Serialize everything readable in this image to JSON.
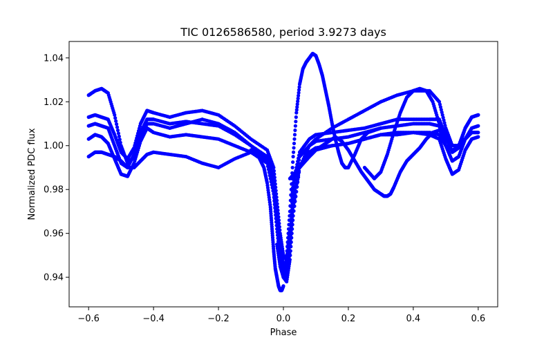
{
  "chart_data": {
    "type": "scatter",
    "title": "TIC 0126586580, period 3.9273 days",
    "xlabel": "Phase",
    "ylabel": "Normalized PDC flux",
    "xlim": [
      -0.66,
      0.66
    ],
    "ylim": [
      0.9265,
      1.0475
    ],
    "xticks": [
      -0.6,
      -0.4,
      -0.2,
      0.0,
      0.2,
      0.4,
      0.6
    ],
    "xtick_labels": [
      "−0.6",
      "−0.4",
      "−0.2",
      "0.0",
      "0.2",
      "0.4",
      "0.6"
    ],
    "yticks": [
      0.94,
      0.96,
      0.98,
      1.0,
      1.02,
      1.04
    ],
    "ytick_labels": [
      "0.94",
      "0.96",
      "0.98",
      "1.00",
      "1.02",
      "1.04"
    ],
    "grid": false,
    "legend": "none",
    "marker_color": "#0000ff",
    "series": [
      {
        "x": [
          -0.6,
          -0.58,
          -0.56,
          -0.54,
          -0.52,
          -0.5,
          -0.48,
          -0.46,
          -0.44,
          -0.42,
          -0.4,
          -0.35,
          -0.3,
          -0.25,
          -0.2,
          -0.15,
          -0.1,
          -0.05,
          -0.03,
          -0.02,
          -0.01,
          0.0,
          0.01,
          0.02,
          0.03,
          0.05,
          0.08,
          0.1,
          0.15,
          0.2,
          0.25,
          0.3,
          0.35,
          0.4,
          0.45,
          0.48,
          0.5,
          0.52,
          0.54,
          0.56,
          0.58,
          0.6
        ],
        "y": [
          1.009,
          1.01,
          1.009,
          1.008,
          1.0,
          0.992,
          0.99,
          0.996,
          1.006,
          1.012,
          1.012,
          1.01,
          1.011,
          1.01,
          1.009,
          1.005,
          1.0,
          0.995,
          0.985,
          0.97,
          0.955,
          0.945,
          0.945,
          0.96,
          0.98,
          0.995,
          1.0,
          1.002,
          1.003,
          1.004,
          1.006,
          1.008,
          1.009,
          1.01,
          1.01,
          1.009,
          1.0,
          0.993,
          0.995,
          1.003,
          1.008,
          1.009
        ]
      },
      {
        "x": [
          -0.6,
          -0.58,
          -0.56,
          -0.54,
          -0.52,
          -0.5,
          -0.48,
          -0.46,
          -0.44,
          -0.42,
          -0.4,
          -0.35,
          -0.3,
          -0.25,
          -0.2,
          -0.15,
          -0.1,
          -0.05,
          -0.03,
          -0.02,
          -0.01,
          0.0,
          0.01,
          0.02,
          0.03,
          0.05,
          0.08,
          0.1,
          0.15,
          0.2,
          0.25,
          0.3,
          0.35,
          0.4,
          0.45,
          0.48,
          0.5,
          0.52,
          0.54,
          0.56,
          0.58,
          0.6
        ],
        "y": [
          1.003,
          1.005,
          1.004,
          1.001,
          0.994,
          0.987,
          0.986,
          0.992,
          1.002,
          1.008,
          1.006,
          1.004,
          1.005,
          1.004,
          1.003,
          1.0,
          0.997,
          0.992,
          0.978,
          0.962,
          0.948,
          0.94,
          0.942,
          0.955,
          0.975,
          0.99,
          0.996,
          0.998,
          1.0,
          1.001,
          1.003,
          1.005,
          1.006,
          1.006,
          1.005,
          1.003,
          0.994,
          0.987,
          0.989,
          0.998,
          1.003,
          1.004
        ]
      },
      {
        "x": [
          -0.6,
          -0.58,
          -0.56,
          -0.54,
          -0.52,
          -0.5,
          -0.48,
          -0.46,
          -0.44,
          -0.42,
          -0.4,
          -0.35,
          -0.3,
          -0.25,
          -0.2,
          -0.15,
          -0.1,
          -0.05,
          -0.03,
          -0.02,
          -0.01,
          0.0,
          0.01,
          0.02,
          0.03,
          0.05,
          0.08,
          0.1,
          0.15,
          0.2,
          0.25,
          0.3,
          0.35,
          0.4,
          0.45,
          0.48,
          0.5,
          0.52,
          0.54,
          0.56,
          0.58,
          0.6
        ],
        "y": [
          1.013,
          1.014,
          1.013,
          1.012,
          1.005,
          0.997,
          0.994,
          0.999,
          1.01,
          1.016,
          1.015,
          1.013,
          1.015,
          1.016,
          1.014,
          1.009,
          1.003,
          0.998,
          0.99,
          0.975,
          0.96,
          0.95,
          0.948,
          0.962,
          0.983,
          0.997,
          1.003,
          1.005,
          1.006,
          1.007,
          1.008,
          1.01,
          1.012,
          1.012,
          1.012,
          1.012,
          1.004,
          0.997,
          0.999,
          1.008,
          1.013,
          1.014
        ]
      },
      {
        "x": [
          -0.6,
          -0.58,
          -0.56,
          -0.54,
          -0.52,
          -0.5,
          -0.48,
          -0.46,
          -0.44,
          -0.42,
          -0.4,
          -0.35,
          -0.3,
          -0.25,
          -0.2,
          -0.15,
          -0.1,
          -0.05,
          -0.03,
          -0.02,
          -0.01,
          0.0,
          0.01,
          0.02,
          0.03,
          0.05,
          0.08,
          0.1,
          0.15,
          0.2,
          0.25,
          0.3,
          0.35,
          0.4,
          0.45,
          0.48,
          0.5,
          0.52,
          0.54,
          0.56,
          0.58,
          0.6
        ],
        "y": [
          1.023,
          1.025,
          1.026,
          1.024,
          1.014,
          1.0,
          0.992,
          0.995,
          1.004,
          1.01,
          1.01,
          1.008,
          1.01,
          1.012,
          1.01,
          1.006,
          1.0,
          0.993,
          0.98,
          0.965,
          0.95,
          0.94,
          0.938,
          0.948,
          0.968,
          0.99,
          1.0,
          1.003,
          1.008,
          1.012,
          1.016,
          1.02,
          1.023,
          1.025,
          1.025,
          1.02,
          1.008,
          1.0,
          1.0,
          1.008,
          1.013,
          1.014
        ]
      },
      {
        "x": [
          -0.6,
          -0.58,
          -0.56,
          -0.54,
          -0.52,
          -0.5,
          -0.48,
          -0.46,
          -0.44,
          -0.42,
          -0.4,
          -0.35,
          -0.3,
          -0.25,
          -0.2,
          -0.15,
          -0.1,
          -0.05,
          -0.03,
          -0.02,
          -0.01,
          0.0,
          0.01,
          0.02,
          0.03,
          0.05,
          0.08,
          0.1,
          0.15,
          0.2,
          0.25,
          0.3,
          0.35,
          0.4,
          0.45,
          0.48,
          0.5,
          0.52,
          0.54,
          0.56,
          0.58,
          0.6
        ],
        "y": [
          0.995,
          0.997,
          0.997,
          0.996,
          0.995,
          0.993,
          0.99,
          0.99,
          0.993,
          0.996,
          0.997,
          0.996,
          0.995,
          0.992,
          0.99,
          0.994,
          0.997,
          0.995,
          0.985,
          0.968,
          0.952,
          0.942,
          0.942,
          0.952,
          0.972,
          0.99,
          0.997,
          0.999,
          1.0,
          1.001,
          1.003,
          1.005,
          1.005,
          1.006,
          1.006,
          1.005,
          1.0,
          0.998,
          0.999,
          1.003,
          1.006,
          1.006
        ]
      },
      {
        "x": [
          -0.02,
          -0.01,
          0.0,
          0.01,
          0.02,
          0.03,
          0.04,
          0.05,
          0.06,
          0.07,
          0.08,
          0.09,
          0.1,
          0.11,
          0.12,
          0.13,
          0.14,
          0.15,
          0.16,
          0.17,
          0.18,
          0.19,
          0.2,
          0.22,
          0.24,
          0.26,
          0.28,
          0.3
        ],
        "y": [
          0.955,
          0.945,
          0.94,
          0.95,
          0.97,
          0.995,
          1.015,
          1.028,
          1.035,
          1.038,
          1.04,
          1.042,
          1.041,
          1.037,
          1.032,
          1.025,
          1.018,
          1.01,
          1.003,
          0.997,
          0.992,
          0.99,
          0.99,
          0.996,
          1.003,
          1.006,
          1.007,
          1.008
        ]
      },
      {
        "x": [
          0.02,
          0.05,
          0.08,
          0.1,
          0.12,
          0.14,
          0.16,
          0.18,
          0.2,
          0.22,
          0.24,
          0.26,
          0.28,
          0.3,
          0.31,
          0.32,
          0.33,
          0.34,
          0.36,
          0.38,
          0.4,
          0.42,
          0.44,
          0.46,
          0.48,
          0.5
        ],
        "y": [
          0.985,
          0.99,
          0.995,
          0.998,
          1.0,
          1.002,
          1.004,
          1.002,
          0.998,
          0.993,
          0.988,
          0.984,
          0.98,
          0.978,
          0.977,
          0.977,
          0.978,
          0.981,
          0.988,
          0.993,
          0.996,
          0.999,
          1.003,
          1.006,
          1.007,
          1.004
        ]
      },
      {
        "x": [
          0.25,
          0.28,
          0.3,
          0.32,
          0.34,
          0.36,
          0.38,
          0.4,
          0.42,
          0.44,
          0.46,
          0.48
        ],
        "y": [
          0.99,
          0.985,
          0.988,
          0.996,
          1.006,
          1.015,
          1.022,
          1.025,
          1.026,
          1.025,
          1.02,
          1.01
        ]
      },
      {
        "x": [
          -0.1,
          -0.08,
          -0.06,
          -0.05,
          -0.04,
          -0.035,
          -0.03,
          -0.025,
          -0.02,
          -0.015,
          -0.01,
          -0.005,
          0.0
        ],
        "y": [
          0.998,
          0.996,
          0.99,
          0.983,
          0.972,
          0.962,
          0.952,
          0.944,
          0.94,
          0.936,
          0.934,
          0.934,
          0.936
        ]
      }
    ]
  }
}
